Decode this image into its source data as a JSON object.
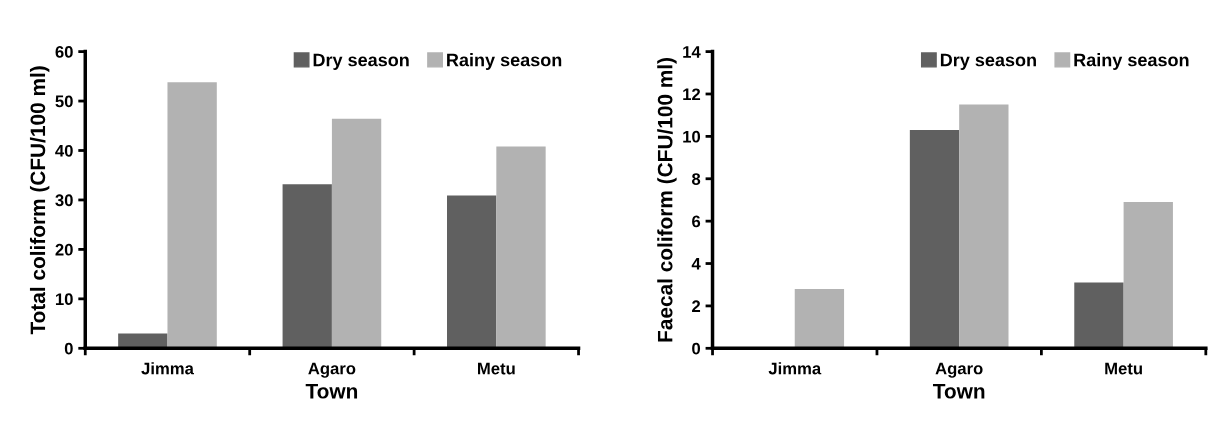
{
  "chart_data": [
    {
      "type": "bar",
      "xlabel": "Town",
      "ylabel": "Total coliform (CFU/100 ml)",
      "categories": [
        "Jimma",
        "Agaro",
        "Metu"
      ],
      "series": [
        {
          "name": "Dry season",
          "color": "#606060",
          "values": [
            3.0,
            33.2,
            30.9
          ]
        },
        {
          "name": "Rainy season",
          "color": "#b2b2b2",
          "values": [
            53.8,
            46.4,
            40.8
          ]
        }
      ],
      "ylim": [
        0,
        60
      ],
      "yticks": [
        0,
        10,
        20,
        30,
        40,
        50,
        60
      ],
      "grid": false,
      "legend": "top right"
    },
    {
      "type": "bar",
      "xlabel": "Town",
      "ylabel": "Faecal coliform (CFU/100 ml)",
      "categories": [
        "Jimma",
        "Agaro",
        "Metu"
      ],
      "series": [
        {
          "name": "Dry season",
          "color": "#606060",
          "values": [
            0,
            10.3,
            3.1
          ]
        },
        {
          "name": "Rainy season",
          "color": "#b2b2b2",
          "values": [
            2.8,
            11.5,
            6.9
          ]
        }
      ],
      "ylim": [
        0,
        14
      ],
      "yticks": [
        0,
        2,
        4,
        6,
        8,
        10,
        12,
        14
      ],
      "grid": false,
      "legend": "top right"
    }
  ]
}
